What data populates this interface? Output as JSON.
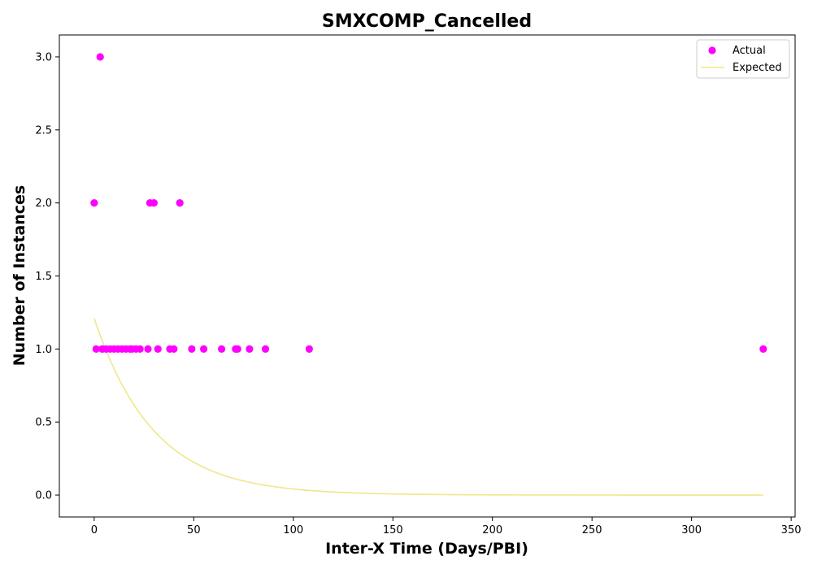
{
  "chart_data": {
    "type": "scatter",
    "title": "SMXCOMP_Cancelled",
    "xlabel": "Inter-X Time (Days/PBI)",
    "ylabel": "Number of Instances",
    "xlim": [
      -17.5,
      352
    ],
    "ylim": [
      -0.15,
      3.15
    ],
    "x_ticks": [
      0,
      50,
      100,
      150,
      200,
      250,
      300,
      350
    ],
    "x_tick_labels": [
      "0",
      "50",
      "100",
      "150",
      "200",
      "250",
      "300",
      "350"
    ],
    "y_ticks": [
      0.0,
      0.5,
      1.0,
      1.5,
      2.0,
      2.5,
      3.0
    ],
    "y_tick_labels": [
      "0.0",
      "0.5",
      "1.0",
      "1.5",
      "2.0",
      "2.5",
      "3.0"
    ],
    "grid": false,
    "legend_position": "top-right",
    "series": [
      {
        "name": "Actual",
        "kind": "scatter",
        "color": "#ff00ff",
        "points": [
          [
            0,
            2
          ],
          [
            1,
            1
          ],
          [
            3,
            3
          ],
          [
            4,
            1
          ],
          [
            6,
            1
          ],
          [
            8,
            1
          ],
          [
            10,
            1
          ],
          [
            12,
            1
          ],
          [
            14,
            1
          ],
          [
            16,
            1
          ],
          [
            18,
            1
          ],
          [
            19,
            1
          ],
          [
            21,
            1
          ],
          [
            23,
            1
          ],
          [
            27,
            1
          ],
          [
            28,
            2
          ],
          [
            30,
            2
          ],
          [
            32,
            1
          ],
          [
            38,
            1
          ],
          [
            40,
            1
          ],
          [
            43,
            2
          ],
          [
            49,
            1
          ],
          [
            55,
            1
          ],
          [
            64,
            1
          ],
          [
            71,
            1
          ],
          [
            72,
            1
          ],
          [
            78,
            1
          ],
          [
            86,
            1
          ],
          [
            108,
            1
          ],
          [
            336,
            1
          ]
        ]
      },
      {
        "name": "Expected",
        "kind": "line",
        "color": "#f0e68c",
        "function": "exponential_decay",
        "y0": 1.21,
        "rate": 0.0337,
        "x_range": [
          0,
          336
        ]
      }
    ]
  }
}
